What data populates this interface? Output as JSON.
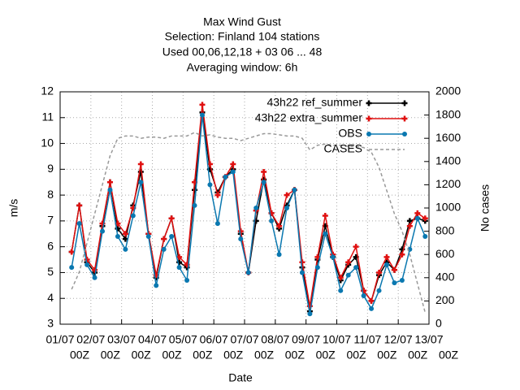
{
  "chart_data": {
    "type": "line",
    "title": [
      "Max Wind Gust",
      "Selection: Finland     104 stations",
      "Used  00,06,12,18  + 03 06 ... 48",
      "Averaging window:  6h"
    ],
    "xlabel": "Date",
    "ylabel": "m/s",
    "y2label": "No cases",
    "xlim": [
      0,
      288
    ],
    "xticks": [
      {
        "value": 0,
        "label": "01/07",
        "time": "00Z"
      },
      {
        "value": 24,
        "label": "02/07",
        "time": "00Z"
      },
      {
        "value": 48,
        "label": "03/07",
        "time": "00Z"
      },
      {
        "value": 72,
        "label": "04/07",
        "time": "00Z"
      },
      {
        "value": 96,
        "label": "05/07",
        "time": "00Z"
      },
      {
        "value": 120,
        "label": "06/07",
        "time": "00Z"
      },
      {
        "value": 144,
        "label": "07/07",
        "time": "00Z"
      },
      {
        "value": 168,
        "label": "08/07",
        "time": "00Z"
      },
      {
        "value": 192,
        "label": "09/07",
        "time": "00Z"
      },
      {
        "value": 216,
        "label": "10/07",
        "time": "00Z"
      },
      {
        "value": 240,
        "label": "11/07",
        "time": "00Z"
      },
      {
        "value": 264,
        "label": "12/07",
        "time": "00Z"
      },
      {
        "value": 288,
        "label": "13/07",
        "time": "00Z"
      }
    ],
    "ylim": [
      3,
      12
    ],
    "yticks": [
      3,
      4,
      5,
      6,
      7,
      8,
      9,
      10,
      11,
      12
    ],
    "y2lim": [
      0,
      2000
    ],
    "y2ticks": [
      0,
      200,
      400,
      600,
      800,
      1000,
      1200,
      1400,
      1600,
      1800,
      2000
    ],
    "grid": true,
    "legend": "upper right",
    "x": [
      9,
      15,
      21,
      27,
      33,
      39,
      45,
      51,
      57,
      63,
      69,
      75,
      81,
      87,
      93,
      99,
      105,
      111,
      117,
      123,
      129,
      135,
      141,
      147,
      153,
      159,
      165,
      171,
      177,
      183,
      189,
      195,
      201,
      207,
      213,
      219,
      225,
      231,
      237,
      243,
      249,
      255,
      261,
      267,
      273,
      279,
      285
    ],
    "series": [
      {
        "name": "43h22 ref_summer",
        "color": "#000000",
        "marker": "plus",
        "values": [
          5.8,
          7.6,
          5.4,
          5.0,
          6.8,
          8.5,
          6.7,
          6.3,
          7.6,
          8.9,
          6.5,
          4.8,
          6.3,
          7.1,
          5.4,
          5.2,
          8.2,
          11.2,
          9.0,
          8.1,
          8.7,
          9.0,
          6.5,
          5.0,
          7.0,
          8.6,
          7.3,
          6.7,
          7.6,
          8.2,
          5.2,
          3.5,
          5.5,
          6.8,
          5.6,
          4.7,
          5.3,
          5.6,
          4.3,
          3.9,
          4.9,
          5.4,
          5.1,
          5.9,
          7.0,
          7.1,
          7.0
        ]
      },
      {
        "name": "43h22 extra_summer",
        "color": "#e01010",
        "marker": "plus",
        "values": [
          5.8,
          7.6,
          5.5,
          5.1,
          6.9,
          8.5,
          6.9,
          6.5,
          7.5,
          9.2,
          6.5,
          4.9,
          6.3,
          7.1,
          5.6,
          5.3,
          8.5,
          11.5,
          9.2,
          8.0,
          8.7,
          9.2,
          6.6,
          5.0,
          7.4,
          8.9,
          7.3,
          6.8,
          8.0,
          8.2,
          5.4,
          3.7,
          5.6,
          7.2,
          5.7,
          4.8,
          5.4,
          6.0,
          4.3,
          3.9,
          5.0,
          5.6,
          5.1,
          5.7,
          6.8,
          7.3,
          7.1
        ]
      },
      {
        "name": "OBS",
        "color": "#0a78b0",
        "marker": "circle",
        "values": [
          5.2,
          6.9,
          5.3,
          4.8,
          6.6,
          8.2,
          6.4,
          5.9,
          7.2,
          8.5,
          6.4,
          4.5,
          5.9,
          6.4,
          5.2,
          4.7,
          7.6,
          11.1,
          8.4,
          6.9,
          8.7,
          8.9,
          6.3,
          5.0,
          7.5,
          8.5,
          7.0,
          5.7,
          7.5,
          8.2,
          5.0,
          3.4,
          5.2,
          6.5,
          5.6,
          4.3,
          4.9,
          5.2,
          4.1,
          3.6,
          4.3,
          5.3,
          4.6,
          4.7,
          5.9,
          7.1,
          6.4
        ]
      },
      {
        "name": "CASES",
        "color": "#999999",
        "axis": "y2",
        "dashed": true,
        "values": [
          300,
          450,
          700,
          950,
          1200,
          1450,
          1600,
          1620,
          1620,
          1600,
          1610,
          1610,
          1600,
          1620,
          1620,
          1620,
          1650,
          1620,
          1630,
          1610,
          1600,
          1600,
          1580,
          1600,
          1620,
          1640,
          1640,
          1630,
          1620,
          1620,
          1600,
          1500,
          1540,
          1550,
          1540,
          1540,
          1530,
          1530,
          1520,
          1480,
          1350,
          1150,
          950,
          800,
          600,
          350,
          100
        ]
      }
    ]
  }
}
